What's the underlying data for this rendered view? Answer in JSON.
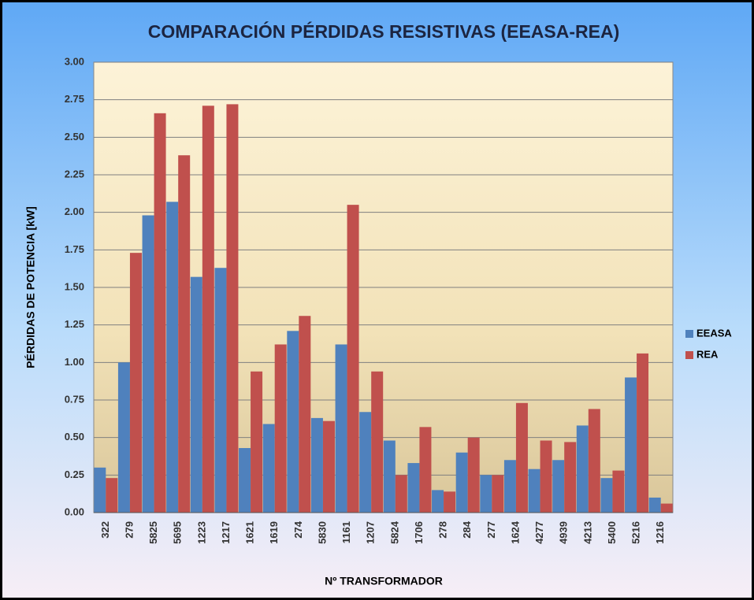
{
  "chart_data": {
    "type": "bar",
    "title": "COMPARACIÓN  PÉRDIDAS RESISTIVAS (EEASA-REA)",
    "x_label": "Nº TRANSFORMADOR",
    "y_label": "PÉRDIDAS DE POTENCIA  [kW]",
    "categories": [
      "322",
      "279",
      "5825",
      "5695",
      "1223",
      "1217",
      "1621",
      "1619",
      "274",
      "5830",
      "1161",
      "1207",
      "5824",
      "1706",
      "278",
      "284",
      "277",
      "1624",
      "4277",
      "4939",
      "4213",
      "5400",
      "5216",
      "1216"
    ],
    "series": [
      {
        "name": "EEASA",
        "color": "#4f81bd",
        "values": [
          0.3,
          1.0,
          1.98,
          2.07,
          1.57,
          1.63,
          0.43,
          0.59,
          1.21,
          0.63,
          1.12,
          0.67,
          0.48,
          0.33,
          0.15,
          0.4,
          0.25,
          0.35,
          0.29,
          0.35,
          0.58,
          0.23,
          0.9,
          0.1
        ]
      },
      {
        "name": "REA",
        "color": "#c0504d",
        "values": [
          0.23,
          1.73,
          2.66,
          2.38,
          2.71,
          2.72,
          0.94,
          1.12,
          1.31,
          0.61,
          2.05,
          0.94,
          0.25,
          0.57,
          0.14,
          0.5,
          0.25,
          0.73,
          0.48,
          0.47,
          0.69,
          0.28,
          1.06,
          0.06
        ]
      }
    ],
    "ylim": [
      0,
      3
    ],
    "yticks": [
      {
        "value": 0,
        "label": "0.00"
      },
      {
        "value": 0.25,
        "label": "0.25"
      },
      {
        "value": 0.5,
        "label": "0.50"
      },
      {
        "value": 0.75,
        "label": "0.75"
      },
      {
        "value": 1,
        "label": "1.00"
      },
      {
        "value": 1.25,
        "label": "1.25"
      },
      {
        "value": 1.5,
        "label": "1.50"
      },
      {
        "value": 1.75,
        "label": "1.75"
      },
      {
        "value": 2,
        "label": "2.00"
      },
      {
        "value": 2.25,
        "label": "2.25"
      },
      {
        "value": 2.5,
        "label": "2.50"
      },
      {
        "value": 2.75,
        "label": "2.75"
      },
      {
        "value": 3,
        "label": "3.00"
      }
    ],
    "grid": true,
    "legend": "right"
  }
}
